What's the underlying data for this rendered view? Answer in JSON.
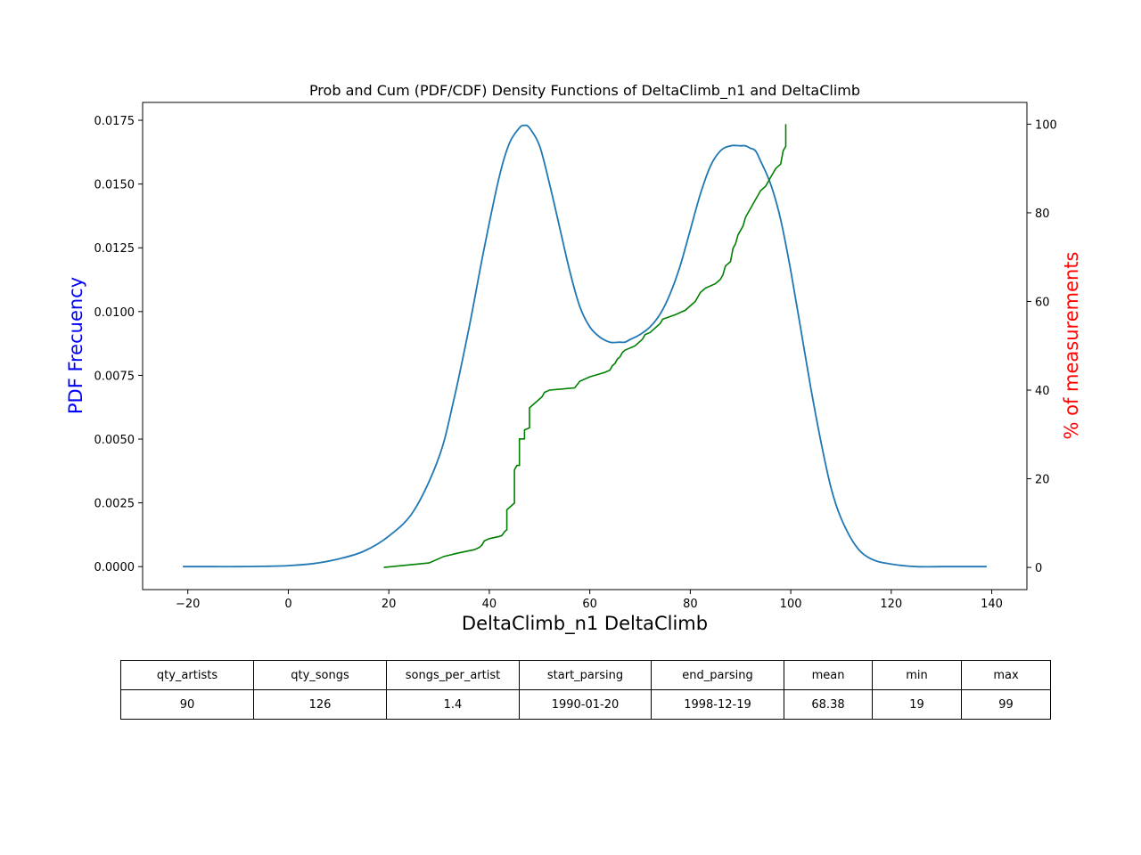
{
  "chart_data": {
    "type": "line",
    "title": "Prob and Cum (PDF/CDF) Density Functions of DeltaClimb_n1 and DeltaClimb",
    "xlabel": "DeltaClimb_n1 DeltaClimb",
    "ylabel_left": "PDF Frecuency",
    "ylabel_right": "% of measurements",
    "xlim": [
      -29,
      147
    ],
    "ylim_left": [
      -0.0009,
      0.0182
    ],
    "ylim_right": [
      -5.0,
      104.9
    ],
    "x_ticks": [
      "−20",
      "0",
      "20",
      "40",
      "60",
      "80",
      "100",
      "120",
      "140"
    ],
    "y_left_ticks": [
      "0.0000",
      "0.0025",
      "0.0050",
      "0.0075",
      "0.0100",
      "0.0125",
      "0.0150",
      "0.0175"
    ],
    "y_right_ticks": [
      "0",
      "20",
      "40",
      "60",
      "80",
      "100"
    ],
    "grid": false,
    "colors": {
      "pdf": "#1f77b4",
      "cdf": "#008000",
      "ylabel_left": "#0000ff",
      "ylabel_right": "#ff0000"
    },
    "series": [
      {
        "axis": "left",
        "color": "#1f77b4",
        "x": [
          -21,
          -15,
          -10,
          -5,
          0,
          5,
          10,
          15,
          20,
          25,
          30,
          33,
          36,
          39,
          42,
          44,
          46,
          47,
          48,
          50,
          52,
          54,
          56,
          58,
          60,
          62,
          64,
          66,
          67,
          68,
          70,
          72,
          74,
          76,
          78,
          80,
          82,
          84,
          86,
          88,
          90,
          91,
          92,
          93,
          94,
          96,
          98,
          100,
          102,
          104,
          106,
          108,
          110,
          113,
          116,
          120,
          125,
          130,
          135,
          139
        ],
        "values": [
          0.0,
          0.0,
          0.0,
          1e-05,
          4e-05,
          0.00012,
          0.0003,
          0.0006,
          0.0012,
          0.0022,
          0.0043,
          0.0066,
          0.0094,
          0.0125,
          0.0153,
          0.0166,
          0.0172,
          0.0173,
          0.0172,
          0.0165,
          0.015,
          0.0133,
          0.0116,
          0.0102,
          0.0094,
          0.009,
          0.0088,
          0.0088,
          0.0088,
          0.0089,
          0.0091,
          0.0094,
          0.0099,
          0.0107,
          0.0118,
          0.0132,
          0.0146,
          0.0157,
          0.0163,
          0.0165,
          0.0165,
          0.0165,
          0.0164,
          0.0163,
          0.0159,
          0.015,
          0.0136,
          0.0116,
          0.0093,
          0.007,
          0.0049,
          0.0031,
          0.0019,
          0.0008,
          0.0003,
          0.0001,
          0.0,
          0.0,
          0.0,
          0.0
        ]
      },
      {
        "axis": "right",
        "color": "#008000",
        "x": [
          19,
          28,
          30,
          31,
          34,
          37,
          38,
          38.5,
          39,
          40,
          42,
          42.5,
          43,
          43.5,
          43.5,
          44,
          45,
          45,
          45.5,
          46,
          46,
          47,
          47,
          48,
          48,
          49,
          50,
          50.5,
          51,
          52,
          57,
          58,
          60,
          63,
          64,
          64.5,
          65,
          65.5,
          66,
          66.5,
          67,
          69,
          70,
          70.5,
          71,
          72,
          73,
          74,
          74.5,
          77,
          79,
          81,
          81.5,
          82,
          83,
          85,
          86,
          86.5,
          87,
          88,
          88.5,
          89,
          89.5,
          90,
          90.5,
          91,
          91.5,
          92,
          92.5,
          93,
          93.5,
          94,
          95,
          95.5,
          96,
          96.5,
          97,
          98,
          98.5,
          99,
          99
        ],
        "values": [
          0,
          1,
          2,
          2.5,
          3.3,
          4,
          4.5,
          5,
          6,
          6.5,
          7,
          7.2,
          8,
          8.5,
          13,
          13.5,
          14.5,
          22,
          23,
          23,
          29,
          29,
          31,
          31.5,
          36,
          37,
          38,
          38.5,
          39.5,
          40,
          40.5,
          42,
          43,
          44,
          44.5,
          45.5,
          46,
          47,
          47.5,
          48.5,
          49,
          50,
          51,
          51.5,
          52.5,
          53,
          54,
          55,
          56,
          57,
          58,
          60,
          61,
          62,
          63,
          64,
          65,
          66,
          68,
          69,
          72,
          73,
          75,
          76,
          77,
          79,
          80,
          81,
          82,
          83,
          84,
          85,
          86,
          87,
          88,
          89,
          90,
          91,
          94,
          95,
          100
        ]
      }
    ]
  },
  "table": {
    "headers": [
      "qty_artists",
      "qty_songs",
      "songs_per_artist",
      "start_parsing",
      "end_parsing",
      "mean",
      "min",
      "max"
    ],
    "values": [
      "90",
      "126",
      "1.4",
      "1990-01-20",
      "1998-12-19",
      "68.38",
      "19",
      "99"
    ]
  }
}
